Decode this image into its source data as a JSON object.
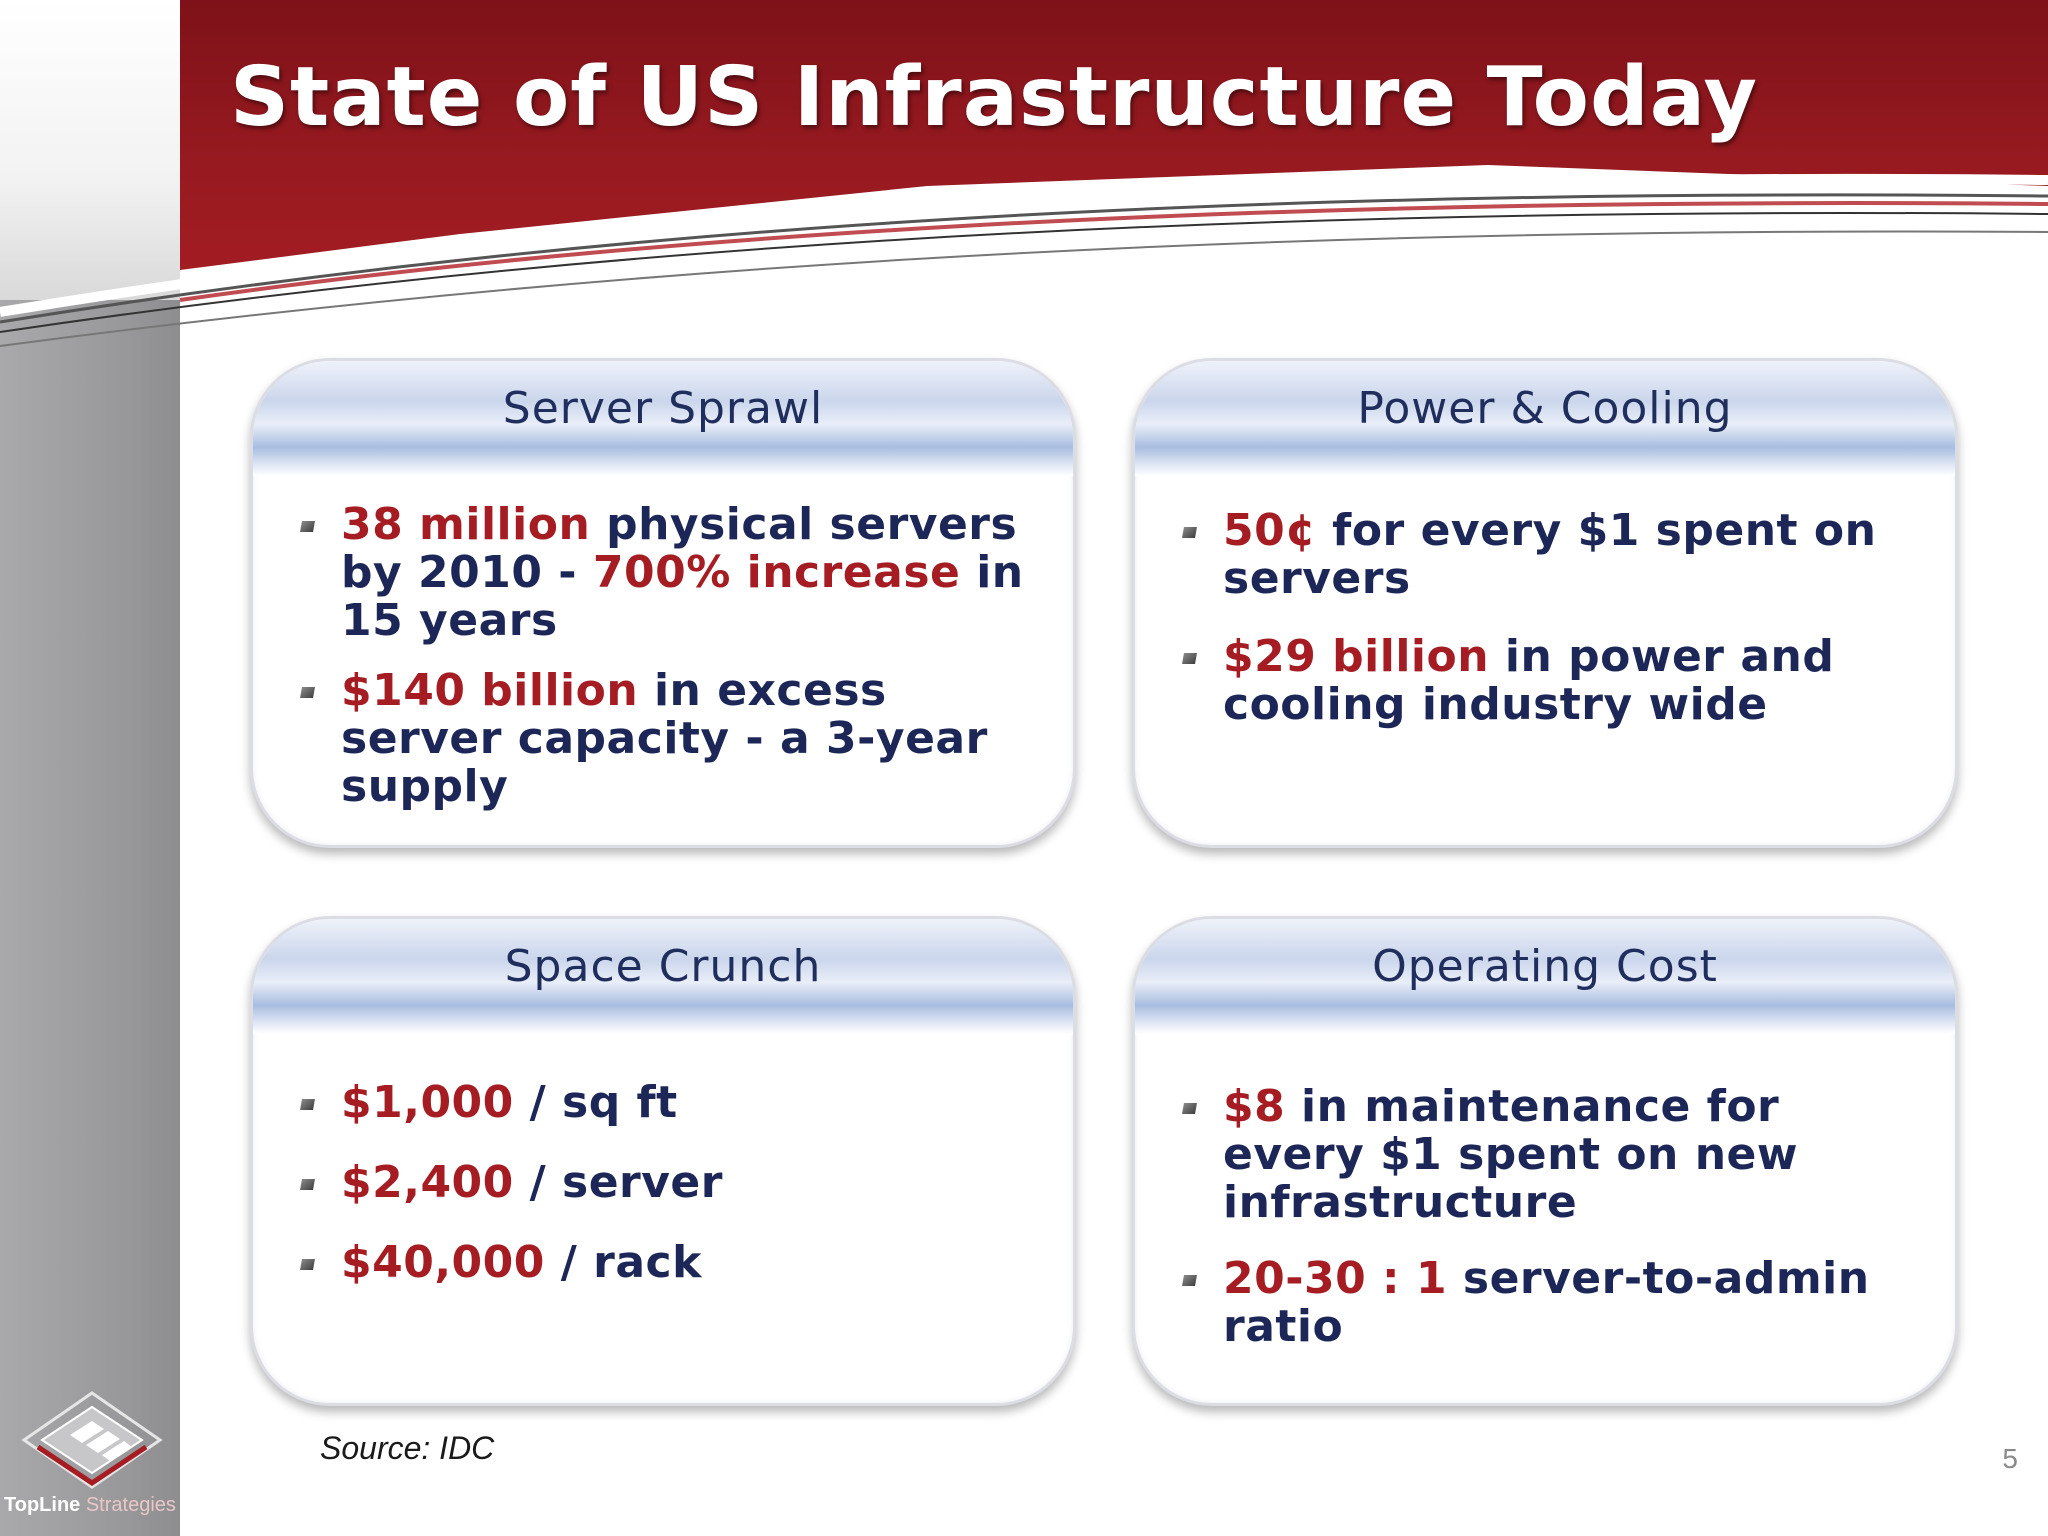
{
  "slide": {
    "title": "State of US Infrastructure Today",
    "source": "Source: IDC",
    "page_number": "5"
  },
  "logo": {
    "name_bold": "TopLine",
    "name_rest": " Strategies"
  },
  "colors": {
    "banner_red": "#971a20",
    "highlight_red": "#a51d23",
    "text_navy": "#1c2757",
    "sidebar_grey": "#9b9b9d"
  },
  "cards": [
    {
      "title": "Server Sprawl",
      "bullets": [
        [
          {
            "t": "38 million",
            "hl": true
          },
          {
            "t": " physical servers by 2010 - ",
            "hl": false
          },
          {
            "t": "700% increase",
            "hl": true
          },
          {
            "t": " in 15 years",
            "hl": false
          }
        ],
        [
          {
            "t": "$140 billion",
            "hl": true
          },
          {
            "t": " in excess server capacity  - a 3-year supply",
            "hl": false
          }
        ]
      ]
    },
    {
      "title": "Power & Cooling",
      "bullets": [
        [
          {
            "t": "50¢",
            "hl": true
          },
          {
            "t": " for every $1 spent on servers",
            "hl": false
          }
        ],
        [
          {
            "t": "$29 billion",
            "hl": true
          },
          {
            "t": " in power and cooling industry  wide",
            "hl": false
          }
        ]
      ]
    },
    {
      "title": "Space Crunch",
      "bullets": [
        [
          {
            "t": "$1,000",
            "hl": true
          },
          {
            "t": " / sq ft",
            "hl": false
          }
        ],
        [
          {
            "t": "$2,400",
            "hl": true
          },
          {
            "t": " / server",
            "hl": false
          }
        ],
        [
          {
            "t": "$40,000",
            "hl": true
          },
          {
            "t": " / rack",
            "hl": false
          }
        ]
      ]
    },
    {
      "title": "Operating Cost",
      "bullets": [
        [
          {
            "t": "$8",
            "hl": true
          },
          {
            "t": " in maintenance for  every $1 spent on new infrastructure",
            "hl": false
          }
        ],
        [
          {
            "t": "20-30 : 1",
            "hl": true
          },
          {
            "t": " server-to-admin ratio",
            "hl": false
          }
        ]
      ]
    }
  ]
}
